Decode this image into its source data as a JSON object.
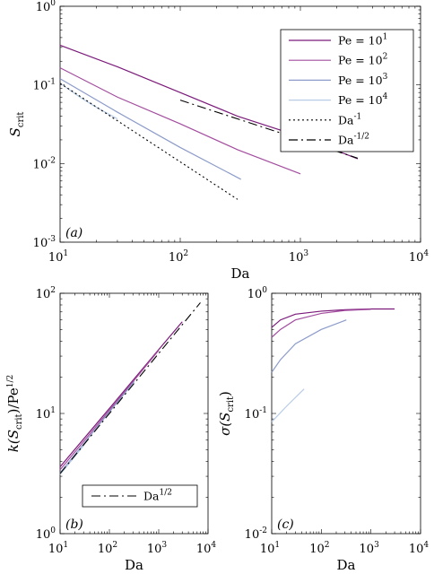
{
  "chart_data": [
    {
      "type": "line",
      "panel_label": "(a)",
      "xlabel": "Da",
      "ylabel": "S",
      "ylabel_sub": "crit",
      "xscale": "log",
      "yscale": "log",
      "xlim": [
        10,
        10000
      ],
      "ylim": [
        0.001,
        1
      ],
      "x_ticks": [
        {
          "base": "10",
          "exp": "1"
        },
        {
          "base": "10",
          "exp": "2"
        },
        {
          "base": "10",
          "exp": "3"
        },
        {
          "base": "10",
          "exp": "4"
        }
      ],
      "y_ticks": [
        {
          "base": "10",
          "exp": "0"
        },
        {
          "base": "10",
          "exp": "-1"
        },
        {
          "base": "10",
          "exp": "-2"
        },
        {
          "base": "10",
          "exp": "-3"
        }
      ],
      "grid": false,
      "legend_position": "top-right",
      "series": [
        {
          "name": "Pe = 10",
          "name_exp": "1",
          "color": "#7b1a7a",
          "dash": "",
          "x": [
            10,
            30,
            100,
            300,
            1000,
            3000
          ],
          "y": [
            0.32,
            0.17,
            0.08,
            0.04,
            0.022,
            0.0115
          ]
        },
        {
          "name": "Pe = 10",
          "name_exp": "2",
          "color": "#a34d9f",
          "dash": "",
          "x": [
            10,
            30,
            100,
            300,
            1000
          ],
          "y": [
            0.165,
            0.07,
            0.032,
            0.015,
            0.0074
          ]
        },
        {
          "name": "Pe = 10",
          "name_exp": "3",
          "color": "#8c9bc9",
          "dash": "",
          "x": [
            10,
            30,
            100,
            320
          ],
          "y": [
            0.12,
            0.045,
            0.016,
            0.0063
          ]
        },
        {
          "name": "Pe = 10",
          "name_exp": "4",
          "color": "#b8cce8",
          "dash": "",
          "x": [
            10,
            15,
            20,
            30
          ],
          "y": [
            0.105,
            0.068,
            0.052,
            0.037
          ]
        },
        {
          "name": "Da",
          "name_exp": "-1",
          "color": "#000000",
          "dash": "2 3",
          "x": [
            10,
            300
          ],
          "y": [
            0.105,
            0.0035
          ]
        },
        {
          "name": "Da",
          "name_exp": "-1/2",
          "color": "#000000",
          "dash": "10 4 2 4",
          "x": [
            100,
            3000
          ],
          "y": [
            0.064,
            0.0117
          ]
        }
      ]
    },
    {
      "type": "line",
      "panel_label": "(b)",
      "xlabel": "Da",
      "ylabel": "k(S",
      "ylabel_sub": "crit",
      "ylabel_tail": ")/Pe",
      "ylabel_exp": "1/2",
      "xscale": "log",
      "yscale": "log",
      "xlim": [
        10,
        10000
      ],
      "ylim": [
        1,
        100
      ],
      "x_ticks": [
        {
          "base": "10",
          "exp": "1"
        },
        {
          "base": "10",
          "exp": "2"
        },
        {
          "base": "10",
          "exp": "3"
        },
        {
          "base": "10",
          "exp": "4"
        }
      ],
      "y_ticks": [
        {
          "base": "10",
          "exp": "2"
        },
        {
          "base": "10",
          "exp": "1"
        },
        {
          "base": "10",
          "exp": "0"
        }
      ],
      "grid": false,
      "legend_position": "bottom-right",
      "series": [
        {
          "color": "#7b1a7a",
          "dash": "",
          "x": [
            10,
            100,
            1000,
            3000
          ],
          "y": [
            3.6,
            11,
            34,
            58
          ]
        },
        {
          "color": "#a34d9f",
          "dash": "",
          "x": [
            10,
            100,
            1000
          ],
          "y": [
            3.4,
            10.6,
            33.5
          ]
        },
        {
          "color": "#8c9bc9",
          "dash": "",
          "x": [
            10,
            100,
            320
          ],
          "y": [
            3.2,
            10.3,
            18.5
          ]
        },
        {
          "color": "#b8cce8",
          "dash": "",
          "x": [
            10,
            30
          ],
          "y": [
            3.1,
            5.4
          ]
        },
        {
          "name": "Da",
          "name_exp": "1/2",
          "color": "#000000",
          "dash": "10 4 2 4",
          "x": [
            10,
            7000
          ],
          "y": [
            3.16,
            83.6
          ]
        }
      ]
    },
    {
      "type": "line",
      "panel_label": "(c)",
      "xlabel": "Da",
      "ylabel": "σ(S",
      "ylabel_sub": "crit",
      "ylabel_tail": ")",
      "xscale": "log",
      "yscale": "log",
      "xlim": [
        10,
        10000
      ],
      "ylim": [
        0.01,
        1
      ],
      "x_ticks": [
        {
          "base": "10",
          "exp": "1"
        },
        {
          "base": "10",
          "exp": "2"
        },
        {
          "base": "10",
          "exp": "3"
        },
        {
          "base": "10",
          "exp": "4"
        }
      ],
      "y_ticks": [
        {
          "base": "10",
          "exp": "0"
        },
        {
          "base": "10",
          "exp": "-1"
        },
        {
          "base": "10",
          "exp": "-2"
        }
      ],
      "grid": false,
      "series": [
        {
          "color": "#7b1a7a",
          "dash": "",
          "x": [
            10,
            15,
            30,
            100,
            300,
            1000,
            3000
          ],
          "y": [
            0.52,
            0.6,
            0.67,
            0.71,
            0.73,
            0.74,
            0.74
          ]
        },
        {
          "color": "#a34d9f",
          "dash": "",
          "x": [
            10,
            15,
            30,
            100,
            300,
            1000
          ],
          "y": [
            0.43,
            0.5,
            0.6,
            0.68,
            0.72,
            0.735
          ]
        },
        {
          "color": "#8c9bc9",
          "dash": "",
          "x": [
            10,
            15,
            30,
            100,
            320
          ],
          "y": [
            0.22,
            0.28,
            0.38,
            0.5,
            0.6
          ]
        },
        {
          "color": "#b8cce8",
          "dash": "",
          "x": [
            10,
            20,
            45
          ],
          "y": [
            0.085,
            0.115,
            0.16
          ]
        }
      ]
    }
  ]
}
